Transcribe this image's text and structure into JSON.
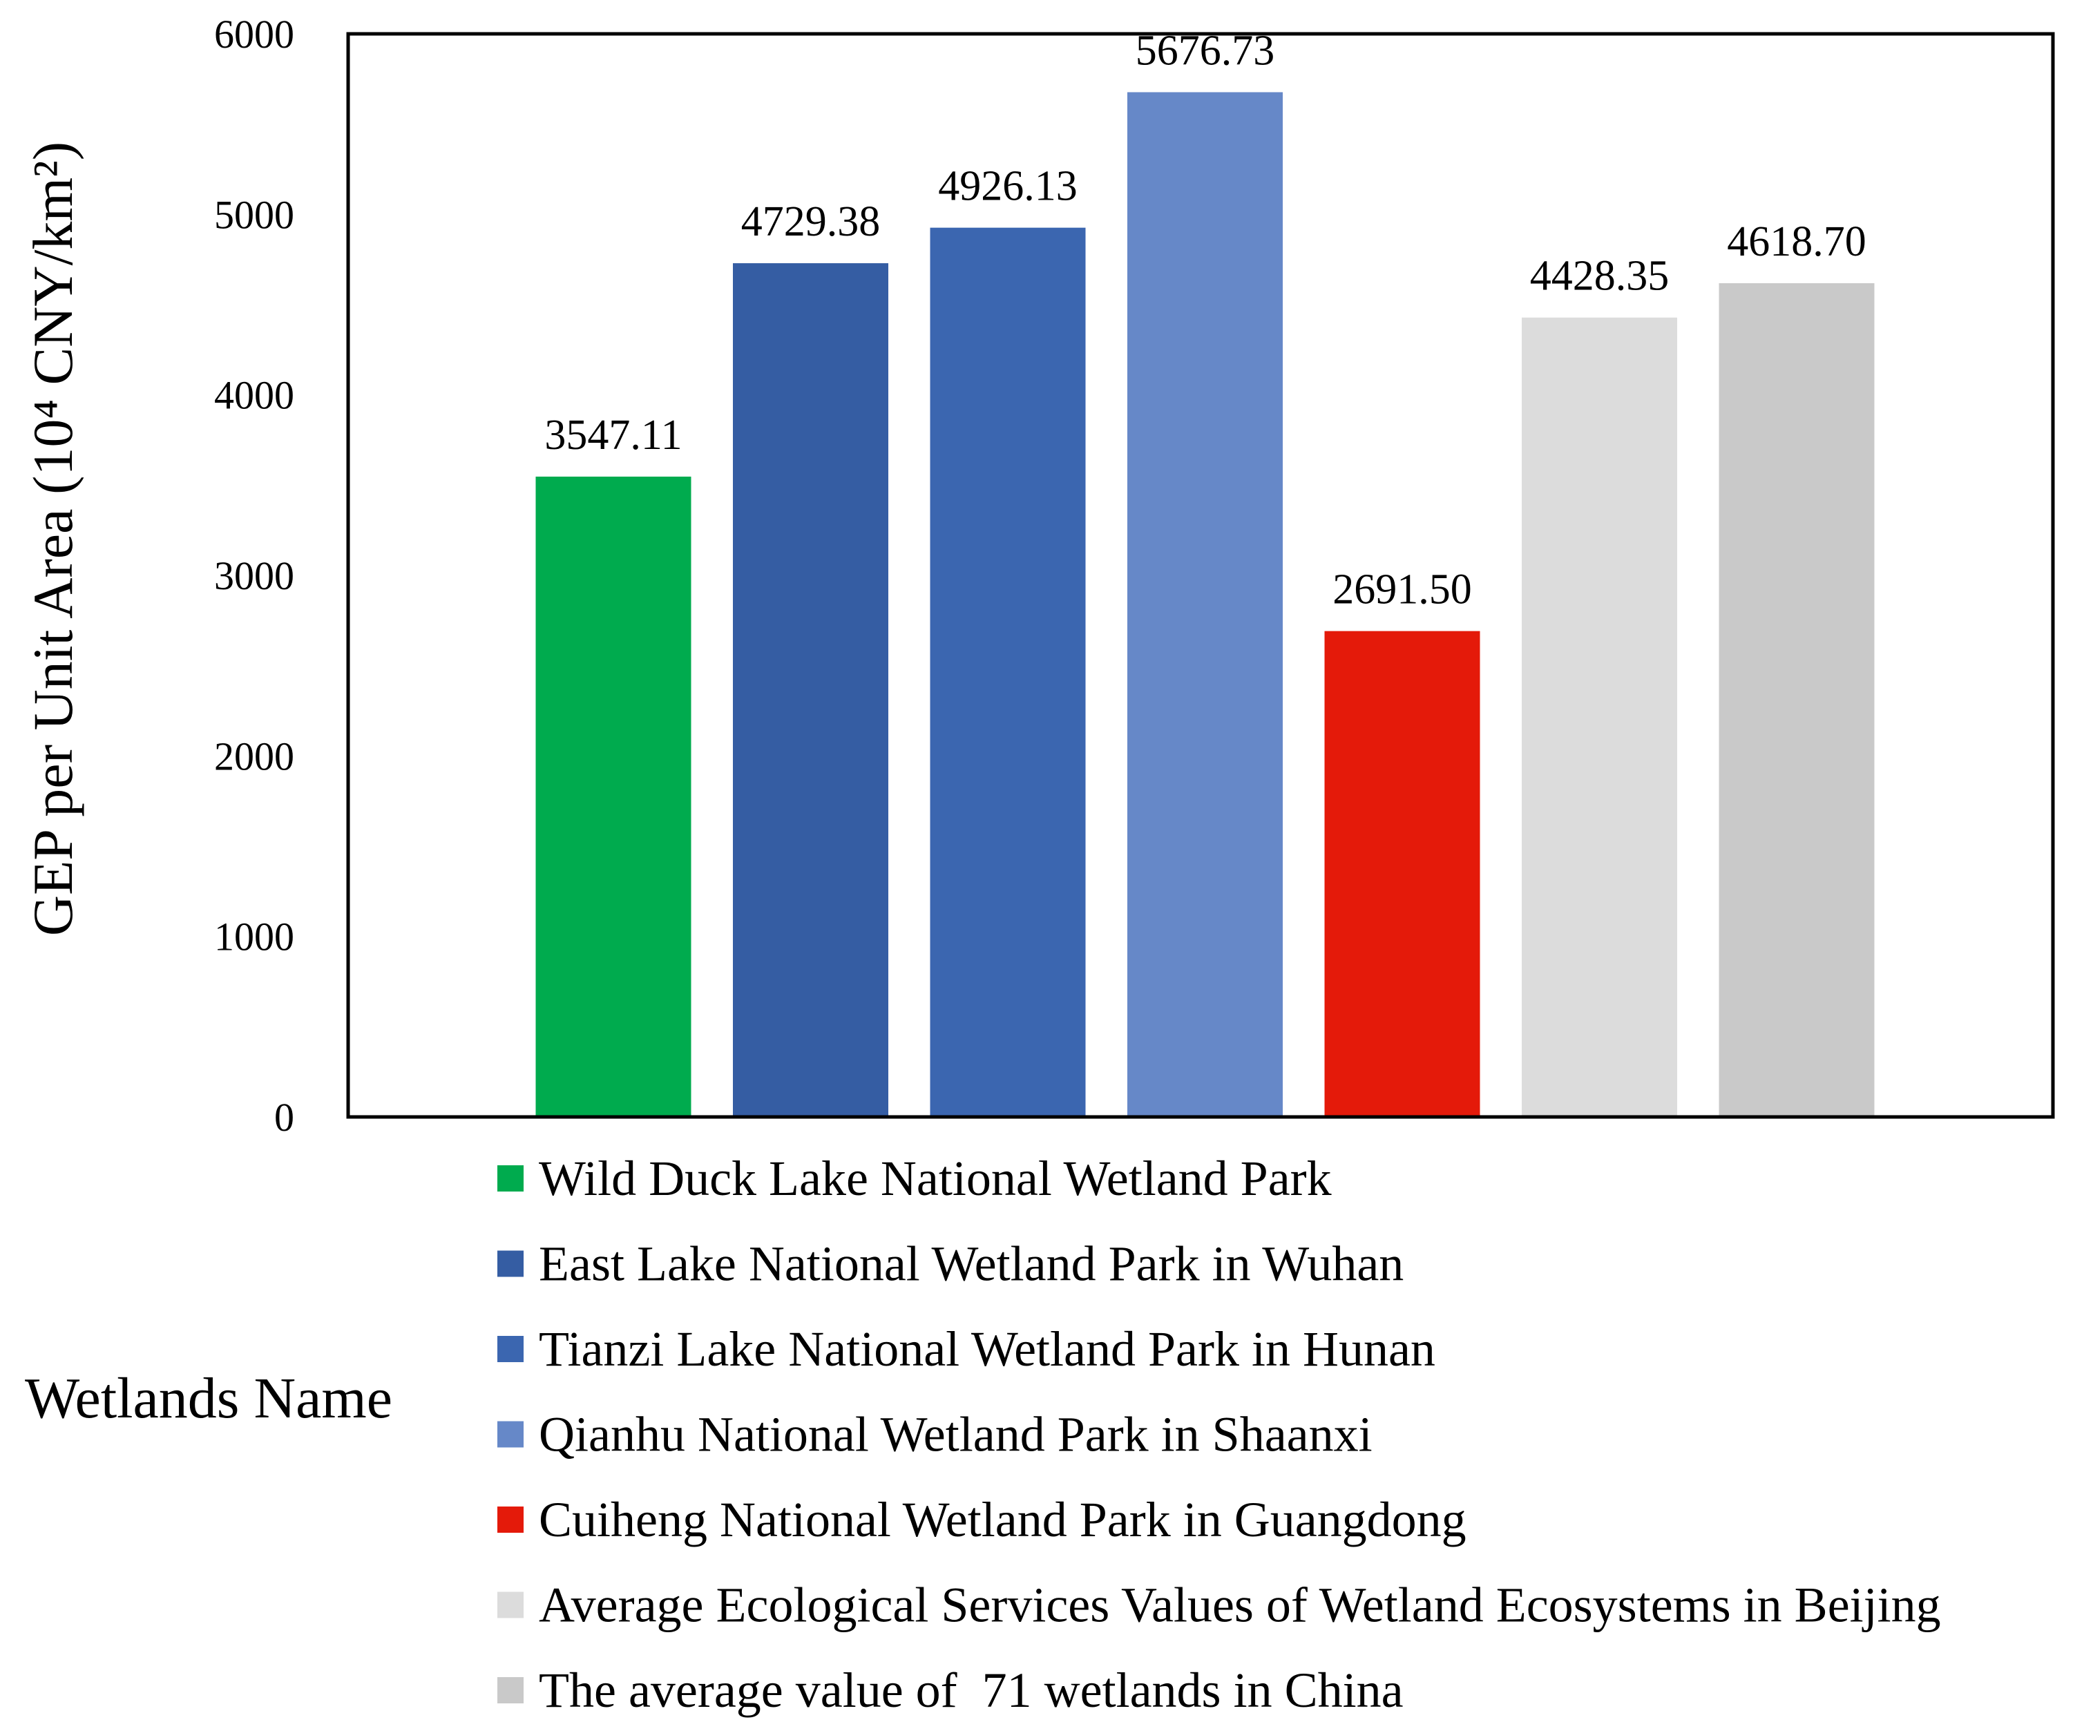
{
  "chart_data": {
    "type": "bar",
    "title": "",
    "xlabel": "Wetlands Name",
    "ylabel": "GEP per Unit Area (10⁴ CNY/km²)",
    "ylim": [
      0,
      6000
    ],
    "yticks": [
      0,
      1000,
      2000,
      3000,
      4000,
      5000,
      6000
    ],
    "grid": false,
    "legend_position": "bottom",
    "categories": [
      "Wild Duck Lake National Wetland Park",
      "East Lake National Wetland Park in Wuhan",
      "Tianzi Lake National Wetland Park in Hunan",
      "Qianhu National Wetland Park in Shaanxi",
      "Cuiheng National Wetland Park in Guangdong",
      "Average Ecological Services Values of Wetland Ecosystems in Beijing",
      "The average value of  71 wetlands in China"
    ],
    "values": [
      3547.11,
      4729.38,
      4926.13,
      5676.73,
      2691.5,
      4428.35,
      4618.7
    ],
    "value_labels": [
      "3547.11",
      "4729.38",
      "4926.13",
      "5676.73",
      "2691.50",
      "4428.35",
      "4618.70"
    ],
    "colors": [
      "#00AB4E",
      "#355DA3",
      "#3B66B0",
      "#6688C8",
      "#E41A0A",
      "#DCDCDC",
      "#C9C9C9"
    ]
  }
}
